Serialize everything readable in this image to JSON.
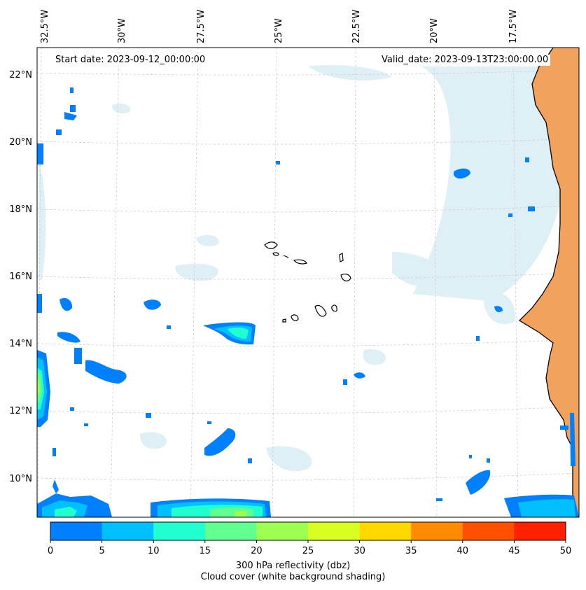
{
  "map": {
    "start_date_text": "Start date: 2023-09-12_00:00:00",
    "valid_date_text": "Valid_date: 2023-09-13T23:00:00.00",
    "lon_labels": [
      "32.5°W",
      "30°W",
      "27.5°W",
      "25°W",
      "22.5°W",
      "20°W",
      "17.5°W"
    ],
    "lat_labels": [
      "22°N",
      "20°N",
      "18°N",
      "16°N",
      "14°N",
      "12°N",
      "10°N"
    ],
    "land_color": "#f3a25e",
    "coast_color": "#000000"
  },
  "colorbar": {
    "ticks": [
      "0",
      "5",
      "10",
      "15",
      "20",
      "25",
      "30",
      "35",
      "40",
      "45",
      "50"
    ],
    "colors": [
      "#0080ff",
      "#00c0ff",
      "#20ffd0",
      "#60ff90",
      "#9cff50",
      "#d8ff20",
      "#ffd800",
      "#ff8c00",
      "#ff5000",
      "#ff2000"
    ],
    "label_line1": "300 hPa reflectivity (dbz)",
    "label_line2": "Cloud cover (white background shading)"
  }
}
